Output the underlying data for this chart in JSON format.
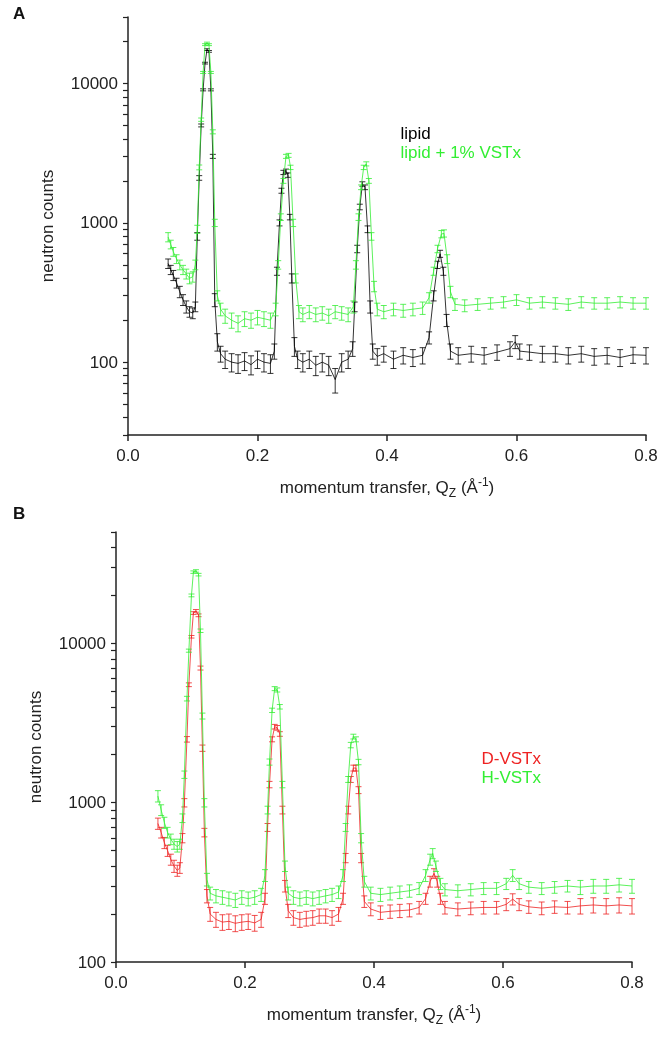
{
  "chart_data": [
    {
      "type": "line",
      "title": "A",
      "xlabel": "momentum transfer, Q$_{Z}$ (Å$^{-1}$)",
      "ylabel": "neutron counts",
      "log": "y",
      "grid": false,
      "legend": "top right",
      "marker": "none",
      "line_style": "solid",
      "xlim": [
        0,
        0.8
      ],
      "xticks": [
        {
          "value": 0,
          "label": "0.0"
        },
        {
          "value": 0.2,
          "label": "0.2"
        },
        {
          "value": 0.4,
          "label": "0.4"
        },
        {
          "value": 0.6,
          "label": "0.6"
        },
        {
          "value": 0.8,
          "label": "0.8"
        }
      ],
      "ylim": [
        30,
        30000
      ],
      "yticks": [
        {
          "value": 30,
          "label": null
        },
        {
          "value": 40,
          "label": null
        },
        {
          "value": 50,
          "label": null
        },
        {
          "value": 60,
          "label": null
        },
        {
          "value": 70,
          "label": null
        },
        {
          "value": 80,
          "label": null
        },
        {
          "value": 90,
          "label": null
        },
        100,
        {
          "value": 200,
          "label": null
        },
        {
          "value": 300,
          "label": null
        },
        {
          "value": 400,
          "label": null
        },
        {
          "value": 500,
          "label": null
        },
        {
          "value": 600,
          "label": null
        },
        {
          "value": 700,
          "label": null
        },
        {
          "value": 800,
          "label": null
        },
        {
          "value": 900,
          "label": null
        },
        1000,
        {
          "value": 2000,
          "label": null
        },
        {
          "value": 3000,
          "label": null
        },
        {
          "value": 4000,
          "label": null
        },
        {
          "value": 5000,
          "label": null
        },
        {
          "value": 6000,
          "label": null
        },
        {
          "value": 7000,
          "label": null
        },
        {
          "value": 8000,
          "label": null
        },
        {
          "value": 9000,
          "label": null
        },
        10000,
        {
          "value": 20000,
          "label": null
        },
        {
          "value": 30000,
          "label": null
        }
      ],
      "series": [
        {
          "name": "lipid",
          "color": "#000000",
          "x": [
            0.062,
            0.066,
            0.07,
            0.075,
            0.08,
            0.085,
            0.09,
            0.095,
            0.1,
            0.104,
            0.107,
            0.11,
            0.113,
            0.116,
            0.119,
            0.122,
            0.125,
            0.128,
            0.131,
            0.134,
            0.138,
            0.143,
            0.15,
            0.16,
            0.17,
            0.18,
            0.19,
            0.2,
            0.21,
            0.22,
            0.226,
            0.23,
            0.234,
            0.237,
            0.24,
            0.244,
            0.247,
            0.25,
            0.253,
            0.257,
            0.262,
            0.27,
            0.28,
            0.29,
            0.3,
            0.31,
            0.32,
            0.33,
            0.34,
            0.347,
            0.35,
            0.354,
            0.358,
            0.362,
            0.366,
            0.37,
            0.374,
            0.378,
            0.385,
            0.395,
            0.41,
            0.425,
            0.44,
            0.455,
            0.465,
            0.472,
            0.478,
            0.482,
            0.487,
            0.492,
            0.498,
            0.51,
            0.53,
            0.55,
            0.57,
            0.59,
            0.598,
            0.605,
            0.62,
            0.64,
            0.66,
            0.68,
            0.7,
            0.72,
            0.74,
            0.76,
            0.78,
            0.8
          ],
          "values": [
            510,
            460,
            420,
            370,
            320,
            280,
            250,
            230,
            225,
            250,
            800,
            2100,
            5000,
            9000,
            14000,
            17500,
            17000,
            9000,
            3000,
            280,
            140,
            115,
            105,
            100,
            98,
            102,
            96,
            105,
            100,
            98,
            120,
            450,
            1000,
            1700,
            2300,
            2350,
            2200,
            1100,
            400,
            130,
            105,
            100,
            105,
            95,
            100,
            95,
            75,
            100,
            105,
            125,
            250,
            650,
            1300,
            1900,
            1800,
            900,
            250,
            120,
            110,
            115,
            105,
            112,
            108,
            112,
            150,
            300,
            500,
            600,
            450,
            200,
            120,
            112,
            115,
            112,
            118,
            125,
            140,
            120,
            118,
            115,
            115,
            112,
            115,
            110,
            112,
            108,
            113,
            112
          ],
          "errors": [
            40,
            35,
            35,
            30,
            30,
            25,
            25,
            20,
            20,
            20,
            50,
            80,
            120,
            150,
            200,
            250,
            250,
            150,
            100,
            30,
            20,
            15,
            15,
            15,
            15,
            15,
            15,
            15,
            15,
            15,
            15,
            30,
            50,
            70,
            80,
            80,
            80,
            50,
            30,
            20,
            15,
            15,
            15,
            15,
            15,
            15,
            15,
            15,
            15,
            15,
            20,
            40,
            60,
            70,
            70,
            50,
            25,
            15,
            15,
            15,
            15,
            15,
            15,
            15,
            15,
            25,
            30,
            35,
            30,
            20,
            15,
            15,
            15,
            15,
            15,
            15,
            15,
            15,
            15,
            15,
            15,
            15,
            15,
            15,
            15,
            15,
            15,
            15
          ]
        },
        {
          "name": "lipid + 1% VSTx",
          "color": "#33ee33",
          "x": [
            0.062,
            0.066,
            0.07,
            0.075,
            0.08,
            0.085,
            0.09,
            0.095,
            0.1,
            0.104,
            0.107,
            0.11,
            0.113,
            0.116,
            0.119,
            0.122,
            0.125,
            0.128,
            0.131,
            0.134,
            0.138,
            0.143,
            0.15,
            0.16,
            0.17,
            0.18,
            0.19,
            0.2,
            0.21,
            0.22,
            0.228,
            0.232,
            0.236,
            0.24,
            0.244,
            0.248,
            0.251,
            0.255,
            0.259,
            0.264,
            0.27,
            0.28,
            0.29,
            0.3,
            0.31,
            0.32,
            0.33,
            0.34,
            0.348,
            0.352,
            0.356,
            0.36,
            0.364,
            0.368,
            0.372,
            0.376,
            0.38,
            0.385,
            0.395,
            0.41,
            0.425,
            0.44,
            0.455,
            0.465,
            0.472,
            0.478,
            0.484,
            0.488,
            0.493,
            0.498,
            0.505,
            0.52,
            0.54,
            0.56,
            0.58,
            0.6,
            0.62,
            0.64,
            0.66,
            0.68,
            0.7,
            0.72,
            0.74,
            0.76,
            0.78,
            0.8
          ],
          "values": [
            790,
            700,
            620,
            550,
            500,
            460,
            430,
            400,
            410,
            500,
            900,
            2500,
            5500,
            12000,
            19000,
            19500,
            19000,
            12000,
            4500,
            1000,
            300,
            240,
            215,
            200,
            190,
            205,
            200,
            210,
            205,
            200,
            240,
            500,
            1100,
            2000,
            3000,
            3050,
            2500,
            1000,
            400,
            230,
            220,
            230,
            220,
            225,
            215,
            230,
            225,
            220,
            250,
            500,
            1100,
            1800,
            2500,
            2650,
            2000,
            800,
            350,
            240,
            230,
            240,
            235,
            240,
            245,
            290,
            450,
            650,
            830,
            840,
            550,
            320,
            260,
            255,
            260,
            265,
            270,
            280,
            265,
            270,
            265,
            260,
            270,
            265,
            265,
            270,
            265,
            265
          ],
          "errors": [
            60,
            50,
            45,
            40,
            40,
            35,
            35,
            35,
            35,
            40,
            60,
            100,
            150,
            200,
            300,
            300,
            300,
            200,
            150,
            60,
            25,
            25,
            25,
            25,
            25,
            25,
            25,
            25,
            25,
            25,
            25,
            35,
            60,
            80,
            100,
            100,
            90,
            60,
            30,
            25,
            25,
            25,
            25,
            25,
            25,
            25,
            25,
            25,
            25,
            35,
            60,
            70,
            90,
            90,
            80,
            50,
            30,
            25,
            25,
            25,
            25,
            25,
            25,
            25,
            30,
            40,
            50,
            50,
            40,
            30,
            25,
            25,
            25,
            25,
            25,
            25,
            25,
            25,
            25,
            25,
            25,
            25,
            25,
            25,
            25,
            25
          ]
        }
      ]
    },
    {
      "type": "line",
      "title": "B",
      "xlabel": "momentum transfer, Q$_{Z}$ (Å$^{-1}$)",
      "ylabel": "neutron counts",
      "log": "y",
      "grid": false,
      "legend": "right",
      "marker": "none",
      "line_style": "solid",
      "xlim": [
        0,
        0.8
      ],
      "xticks": [
        {
          "value": 0,
          "label": "0.0"
        },
        {
          "value": 0.2,
          "label": "0.2"
        },
        {
          "value": 0.4,
          "label": "0.4"
        },
        {
          "value": 0.6,
          "label": "0.6"
        },
        {
          "value": 0.8,
          "label": "0.8"
        }
      ],
      "ylim": [
        100,
        50000
      ],
      "yticks": [
        100,
        {
          "value": 200,
          "label": null
        },
        {
          "value": 300,
          "label": null
        },
        {
          "value": 400,
          "label": null
        },
        {
          "value": 500,
          "label": null
        },
        {
          "value": 600,
          "label": null
        },
        {
          "value": 700,
          "label": null
        },
        {
          "value": 800,
          "label": null
        },
        {
          "value": 900,
          "label": null
        },
        1000,
        {
          "value": 2000,
          "label": null
        },
        {
          "value": 3000,
          "label": null
        },
        {
          "value": 4000,
          "label": null
        },
        {
          "value": 5000,
          "label": null
        },
        {
          "value": 6000,
          "label": null
        },
        {
          "value": 7000,
          "label": null
        },
        {
          "value": 8000,
          "label": null
        },
        {
          "value": 9000,
          "label": null
        },
        10000,
        {
          "value": 20000,
          "label": null
        },
        {
          "value": 30000,
          "label": null
        },
        {
          "value": 40000,
          "label": null
        },
        {
          "value": 50000,
          "label": null
        }
      ],
      "series": [
        {
          "name": "D-VSTx",
          "color": "#ee2222",
          "x": [
            0.065,
            0.07,
            0.075,
            0.08,
            0.085,
            0.09,
            0.095,
            0.099,
            0.103,
            0.106,
            0.11,
            0.113,
            0.117,
            0.12,
            0.124,
            0.128,
            0.131,
            0.134,
            0.137,
            0.141,
            0.146,
            0.155,
            0.165,
            0.175,
            0.185,
            0.195,
            0.205,
            0.215,
            0.225,
            0.231,
            0.235,
            0.238,
            0.242,
            0.246,
            0.25,
            0.254,
            0.258,
            0.262,
            0.267,
            0.275,
            0.285,
            0.295,
            0.305,
            0.315,
            0.325,
            0.335,
            0.345,
            0.352,
            0.356,
            0.36,
            0.364,
            0.368,
            0.372,
            0.376,
            0.38,
            0.385,
            0.395,
            0.41,
            0.425,
            0.44,
            0.455,
            0.47,
            0.48,
            0.487,
            0.493,
            0.498,
            0.503,
            0.51,
            0.53,
            0.55,
            0.57,
            0.59,
            0.605,
            0.615,
            0.625,
            0.64,
            0.66,
            0.68,
            0.7,
            0.72,
            0.74,
            0.76,
            0.78,
            0.8
          ],
          "values": [
            740,
            650,
            560,
            500,
            440,
            400,
            375,
            390,
            600,
            1000,
            2500,
            5500,
            11000,
            15500,
            16000,
            15000,
            7000,
            2200,
            650,
            260,
            200,
            185,
            178,
            180,
            175,
            178,
            180,
            176,
            185,
            250,
            700,
            1300,
            2500,
            3000,
            2950,
            2700,
            900,
            300,
            210,
            190,
            185,
            188,
            190,
            195,
            195,
            190,
            200,
            250,
            450,
            900,
            1400,
            1650,
            1650,
            1200,
            450,
            240,
            215,
            205,
            208,
            210,
            212,
            220,
            250,
            320,
            360,
            320,
            250,
            220,
            215,
            218,
            220,
            220,
            230,
            248,
            230,
            222,
            218,
            222,
            220,
            225,
            228,
            225,
            228,
            225
          ],
          "errors": [
            60,
            50,
            45,
            40,
            35,
            35,
            30,
            30,
            40,
            60,
            100,
            150,
            200,
            300,
            300,
            300,
            200,
            100,
            40,
            25,
            20,
            20,
            20,
            20,
            20,
            20,
            20,
            20,
            20,
            20,
            40,
            60,
            90,
            100,
            100,
            90,
            50,
            25,
            20,
            20,
            20,
            20,
            20,
            20,
            20,
            20,
            20,
            20,
            30,
            50,
            60,
            70,
            70,
            60,
            30,
            20,
            20,
            20,
            20,
            20,
            20,
            20,
            20,
            25,
            25,
            25,
            20,
            20,
            20,
            20,
            20,
            20,
            20,
            20,
            20,
            20,
            20,
            20,
            20,
            25,
            25,
            25,
            25,
            25
          ]
        },
        {
          "name": "H-VSTx",
          "color": "#33ee33",
          "x": [
            0.065,
            0.07,
            0.075,
            0.08,
            0.085,
            0.09,
            0.095,
            0.099,
            0.103,
            0.106,
            0.11,
            0.113,
            0.117,
            0.12,
            0.124,
            0.128,
            0.131,
            0.134,
            0.137,
            0.141,
            0.146,
            0.155,
            0.165,
            0.175,
            0.185,
            0.195,
            0.205,
            0.215,
            0.225,
            0.231,
            0.235,
            0.238,
            0.242,
            0.246,
            0.25,
            0.254,
            0.258,
            0.262,
            0.267,
            0.275,
            0.285,
            0.295,
            0.305,
            0.315,
            0.325,
            0.335,
            0.345,
            0.352,
            0.356,
            0.36,
            0.364,
            0.368,
            0.372,
            0.376,
            0.38,
            0.385,
            0.395,
            0.41,
            0.425,
            0.44,
            0.455,
            0.47,
            0.48,
            0.487,
            0.491,
            0.496,
            0.503,
            0.51,
            0.53,
            0.55,
            0.57,
            0.59,
            0.605,
            0.615,
            0.625,
            0.64,
            0.66,
            0.68,
            0.7,
            0.72,
            0.74,
            0.76,
            0.78,
            0.8
          ],
          "values": [
            1100,
            900,
            750,
            650,
            590,
            550,
            530,
            550,
            800,
            1500,
            4500,
            9000,
            20000,
            28000,
            28500,
            27000,
            12000,
            3500,
            1000,
            330,
            270,
            260,
            255,
            250,
            245,
            255,
            250,
            255,
            265,
            350,
            900,
            1800,
            3800,
            5200,
            5100,
            4000,
            1300,
            400,
            270,
            255,
            250,
            255,
            250,
            255,
            260,
            265,
            275,
            350,
            700,
            1400,
            2300,
            2600,
            2500,
            1800,
            600,
            320,
            270,
            265,
            270,
            275,
            280,
            290,
            350,
            440,
            480,
            400,
            310,
            285,
            280,
            285,
            290,
            290,
            310,
            350,
            310,
            295,
            290,
            295,
            300,
            295,
            300,
            300,
            305,
            300
          ],
          "errors": [
            90,
            70,
            60,
            50,
            45,
            40,
            40,
            40,
            50,
            80,
            150,
            200,
            400,
            500,
            500,
            500,
            300,
            150,
            60,
            30,
            25,
            25,
            25,
            25,
            25,
            25,
            25,
            25,
            25,
            30,
            50,
            80,
            120,
            150,
            150,
            130,
            60,
            30,
            25,
            25,
            25,
            25,
            25,
            25,
            25,
            25,
            25,
            30,
            40,
            60,
            90,
            90,
            90,
            70,
            40,
            25,
            25,
            25,
            25,
            25,
            25,
            25,
            30,
            35,
            35,
            30,
            25,
            25,
            25,
            25,
            25,
            25,
            25,
            30,
            25,
            25,
            25,
            25,
            25,
            30,
            30,
            30,
            30,
            30
          ]
        }
      ]
    }
  ]
}
